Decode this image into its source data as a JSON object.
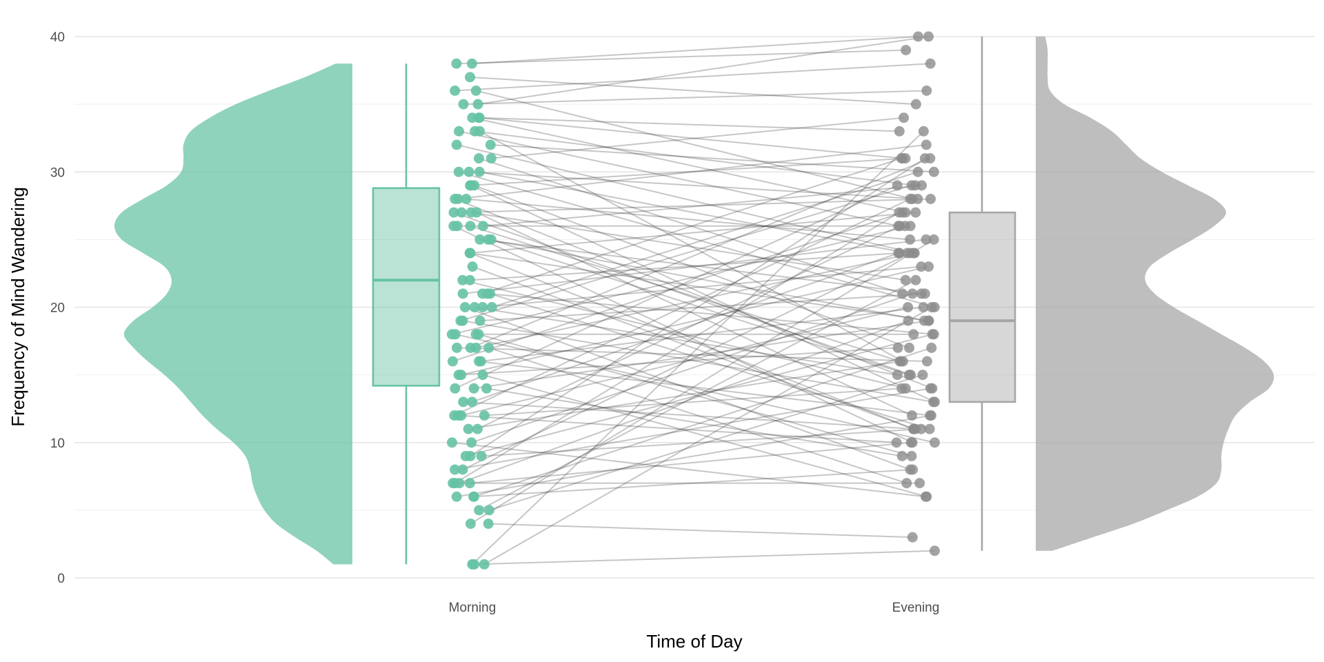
{
  "chart_data": {
    "type": "raincloud",
    "title": "",
    "xlabel": "Time of Day",
    "ylabel": "Frequency of Mind Wandering",
    "ylim": [
      0,
      40
    ],
    "yticks": [
      0,
      10,
      20,
      30,
      40
    ],
    "categories": [
      "Morning",
      "Evening"
    ],
    "grid": true,
    "legend": "none",
    "colors": {
      "Morning": "#66c2a5",
      "Evening": "#a6a6a6",
      "lines": "#333333"
    },
    "boxplots": {
      "Morning": {
        "min": 1,
        "q1": 14.2,
        "median": 22,
        "q3": 28.8,
        "max": 38
      },
      "Evening": {
        "min": 2,
        "q1": 13,
        "median": 19,
        "q3": 27,
        "max": 40
      }
    },
    "density": {
      "Morning": {
        "y": [
          1,
          2,
          3,
          4,
          5,
          6,
          7,
          8,
          9,
          10,
          11,
          12,
          13,
          14,
          15,
          16,
          17,
          18,
          19,
          20,
          21,
          22,
          23,
          24,
          25,
          26,
          27,
          28,
          29,
          30,
          31,
          32,
          33,
          34,
          35,
          36,
          37,
          38
        ],
        "density": [
          0.08,
          0.15,
          0.24,
          0.32,
          0.37,
          0.4,
          0.42,
          0.43,
          0.45,
          0.5,
          0.57,
          0.63,
          0.68,
          0.73,
          0.79,
          0.86,
          0.92,
          0.96,
          0.92,
          0.84,
          0.78,
          0.76,
          0.79,
          0.88,
          0.97,
          1.0,
          0.97,
          0.88,
          0.78,
          0.72,
          0.71,
          0.71,
          0.68,
          0.6,
          0.49,
          0.35,
          0.2,
          0.07
        ]
      },
      "Evening": {
        "y": [
          2,
          3,
          4,
          5,
          6,
          7,
          8,
          9,
          10,
          11,
          12,
          13,
          14,
          15,
          16,
          17,
          18,
          19,
          20,
          21,
          22,
          23,
          24,
          25,
          26,
          27,
          28,
          29,
          30,
          31,
          32,
          33,
          34,
          35,
          36,
          37,
          38,
          39,
          40
        ],
        "density": [
          0.07,
          0.24,
          0.41,
          0.55,
          0.68,
          0.76,
          0.78,
          0.78,
          0.79,
          0.81,
          0.84,
          0.9,
          0.98,
          1.0,
          0.96,
          0.88,
          0.78,
          0.68,
          0.58,
          0.5,
          0.46,
          0.48,
          0.56,
          0.66,
          0.75,
          0.8,
          0.75,
          0.64,
          0.53,
          0.44,
          0.38,
          0.32,
          0.23,
          0.12,
          0.06,
          0.05,
          0.05,
          0.05,
          0.04
        ]
      }
    },
    "pairs": [
      [
        38,
        40
      ],
      [
        38,
        39
      ],
      [
        37,
        35
      ],
      [
        36,
        38
      ],
      [
        36,
        28
      ],
      [
        35,
        36
      ],
      [
        34,
        33
      ],
      [
        34,
        27
      ],
      [
        34,
        31
      ],
      [
        33,
        29
      ],
      [
        33,
        26
      ],
      [
        32,
        30
      ],
      [
        32,
        24
      ],
      [
        31,
        34
      ],
      [
        30,
        28
      ],
      [
        30,
        24
      ],
      [
        30,
        20
      ],
      [
        29,
        31
      ],
      [
        29,
        17
      ],
      [
        28,
        32
      ],
      [
        28,
        25
      ],
      [
        28,
        14
      ],
      [
        27,
        28
      ],
      [
        27,
        22
      ],
      [
        27,
        12
      ],
      [
        26,
        29
      ],
      [
        26,
        26
      ],
      [
        26,
        16
      ],
      [
        26,
        10
      ],
      [
        25,
        21
      ],
      [
        25,
        15
      ],
      [
        24,
        27
      ],
      [
        24,
        19
      ],
      [
        24,
        11
      ],
      [
        22,
        14
      ],
      [
        21,
        31
      ],
      [
        21,
        25
      ],
      [
        21,
        18
      ],
      [
        21,
        11
      ],
      [
        20,
        23
      ],
      [
        20,
        15
      ],
      [
        20,
        8
      ],
      [
        19,
        29
      ],
      [
        19,
        21
      ],
      [
        19,
        13
      ],
      [
        18,
        26
      ],
      [
        18,
        18
      ],
      [
        18,
        10
      ],
      [
        17,
        31
      ],
      [
        17,
        24
      ],
      [
        17,
        16
      ],
      [
        17,
        7
      ],
      [
        16,
        27
      ],
      [
        16,
        20
      ],
      [
        16,
        12
      ],
      [
        15,
        23
      ],
      [
        15,
        17
      ],
      [
        14,
        29
      ],
      [
        14,
        19
      ],
      [
        14,
        9
      ],
      [
        13,
        24
      ],
      [
        13,
        11
      ],
      [
        12,
        28
      ],
      [
        12,
        20
      ],
      [
        12,
        14
      ],
      [
        12,
        10
      ],
      [
        11,
        26
      ],
      [
        11,
        16
      ],
      [
        10,
        21
      ],
      [
        10,
        6
      ],
      [
        9,
        31
      ],
      [
        9,
        18
      ],
      [
        9,
        11
      ],
      [
        8,
        24
      ],
      [
        8,
        14
      ],
      [
        7,
        27
      ],
      [
        7,
        19
      ],
      [
        7,
        7
      ],
      [
        7,
        10
      ],
      [
        6,
        17
      ],
      [
        6,
        8
      ],
      [
        6,
        12
      ],
      [
        5,
        22
      ],
      [
        5,
        15
      ],
      [
        4,
        25
      ],
      [
        4,
        3
      ],
      [
        1,
        33
      ],
      [
        1,
        20
      ],
      [
        1,
        2
      ],
      [
        35,
        40
      ],
      [
        22,
        24
      ],
      [
        20,
        30
      ],
      [
        18,
        9
      ],
      [
        15,
        6
      ],
      [
        23,
        11
      ],
      [
        25,
        19
      ],
      [
        27,
        15
      ],
      [
        29,
        13
      ],
      [
        31,
        21
      ],
      [
        33,
        16
      ]
    ]
  }
}
